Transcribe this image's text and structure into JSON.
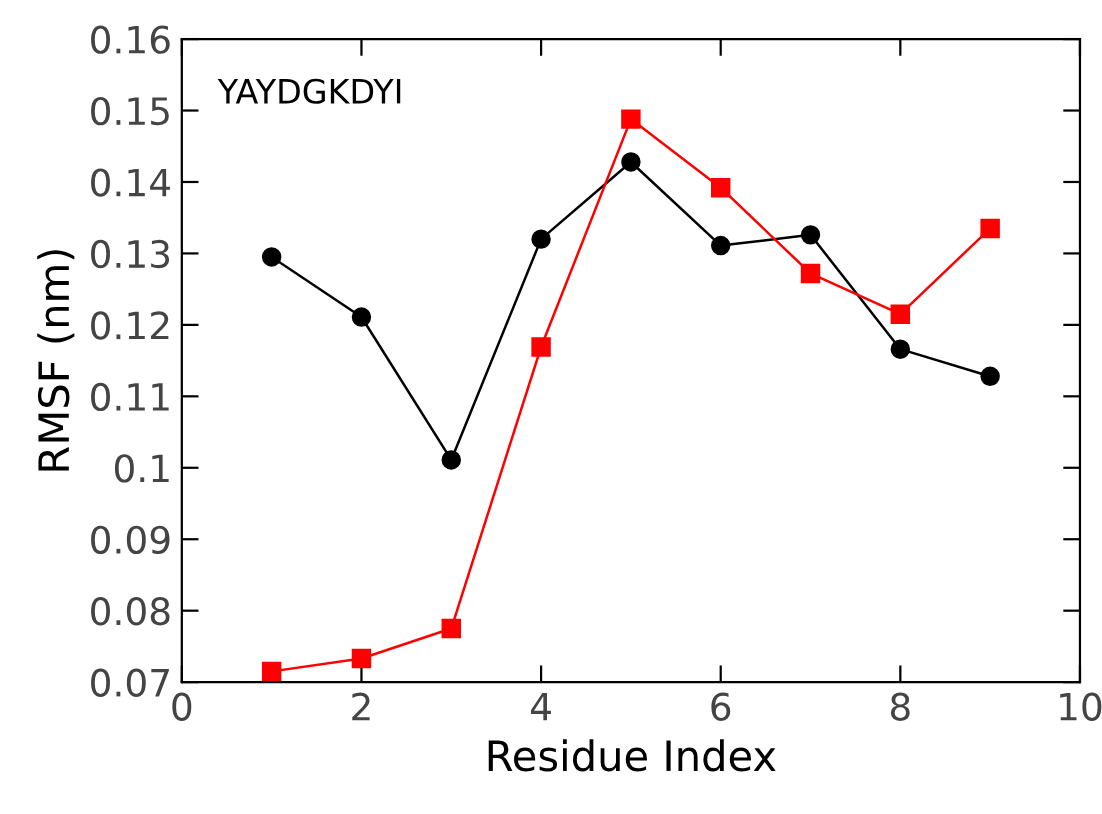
{
  "chart_data": {
    "type": "line",
    "xlabel": "Residue Index",
    "ylabel": "RMSF (nm)",
    "annotations": [
      "YAYDGKDYI"
    ],
    "x": [
      1,
      2,
      3,
      4,
      5,
      6,
      7,
      8,
      9
    ],
    "series": [
      {
        "color": "#000000",
        "marker": "circle",
        "values": [
          0.1295,
          0.1211,
          0.1011,
          0.132,
          0.1428,
          0.1311,
          0.1326,
          0.1166,
          0.1128
        ]
      },
      {
        "color": "#ff0000",
        "marker": "square",
        "values": [
          0.0715,
          0.0733,
          0.0775,
          0.1169,
          0.1488,
          0.1392,
          0.1272,
          0.1215,
          0.1335
        ]
      }
    ],
    "xlim": [
      0,
      10
    ],
    "xticks": [
      0,
      2,
      4,
      6,
      8,
      10
    ],
    "ylim": [
      0.07,
      0.16
    ],
    "yticks": [
      {
        "value": 0.07,
        "label": "0.07"
      },
      {
        "value": 0.08,
        "label": "0.08"
      },
      {
        "value": 0.09,
        "label": "0.09"
      },
      {
        "value": 0.1,
        "label": "0.1"
      },
      {
        "value": 0.11,
        "label": "0.11"
      },
      {
        "value": 0.12,
        "label": "0.12"
      },
      {
        "value": 0.13,
        "label": "0.13"
      },
      {
        "value": 0.14,
        "label": "0.14"
      },
      {
        "value": 0.15,
        "label": "0.15"
      },
      {
        "value": 0.16,
        "label": "0.16"
      }
    ],
    "grid": false,
    "legend": false
  }
}
